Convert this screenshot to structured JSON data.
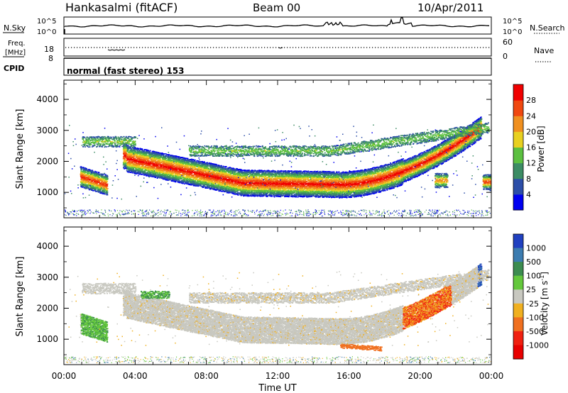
{
  "header": {
    "station": "Hankasalmi (fitACF)",
    "beam": "Beam 00",
    "date": "10/Apr/2011"
  },
  "noise_panel": {
    "left_label": "N.Sky",
    "left_ticks": [
      "10^5",
      "10^0"
    ],
    "right_label": "N.Search",
    "right_ticks": [
      "10^5",
      "10^0"
    ]
  },
  "freq_panel": {
    "left_label_line1": "Freq.",
    "left_label_line2": "[MHz]",
    "left_ticks": [
      "18",
      "8"
    ],
    "right_label": "Nave",
    "right_ticks": [
      "60",
      "0"
    ]
  },
  "cpid_panel": {
    "label": "CPID",
    "program": "normal (fast stereo) 153"
  },
  "chart_data": [
    {
      "type": "heatmap",
      "name": "power",
      "ylabel": "Slant Range [km]",
      "yticks": [
        "1000",
        "2000",
        "3000",
        "4000"
      ],
      "ylim": [
        180,
        4620
      ],
      "xlim": [
        0,
        24
      ],
      "colorbar": {
        "label": "Power [dB]",
        "ticks": [
          "4",
          "8",
          "12",
          "16",
          "20",
          "24",
          "28"
        ],
        "colors": [
          "#0000f0",
          "#2c4ea8",
          "#3c8c64",
          "#5cc040",
          "#e8d020",
          "#f09020",
          "#f04810",
          "#f00000"
        ]
      }
    },
    {
      "type": "heatmap",
      "name": "velocity",
      "ylabel": "Slant Range [km]",
      "yticks": [
        "1000",
        "2000",
        "3000",
        "4000"
      ],
      "ylim": [
        180,
        4620
      ],
      "xlim": [
        0,
        24
      ],
      "xlabel": "Time UT",
      "xticks": [
        "00:00",
        "04:00",
        "08:00",
        "12:00",
        "16:00",
        "20:00",
        "00:00"
      ],
      "colorbar": {
        "label": "Velocity [m s^-1]",
        "ticks": [
          "1000",
          "500",
          "100",
          "25",
          "-25",
          "-100",
          "-500",
          "-1000"
        ],
        "colors": [
          "#2040c0",
          "#3c7cb0",
          "#3c8c50",
          "#64c83c",
          "#c8c8c0",
          "#f0b020",
          "#f07020",
          "#f02010",
          "#e80000"
        ]
      }
    }
  ]
}
